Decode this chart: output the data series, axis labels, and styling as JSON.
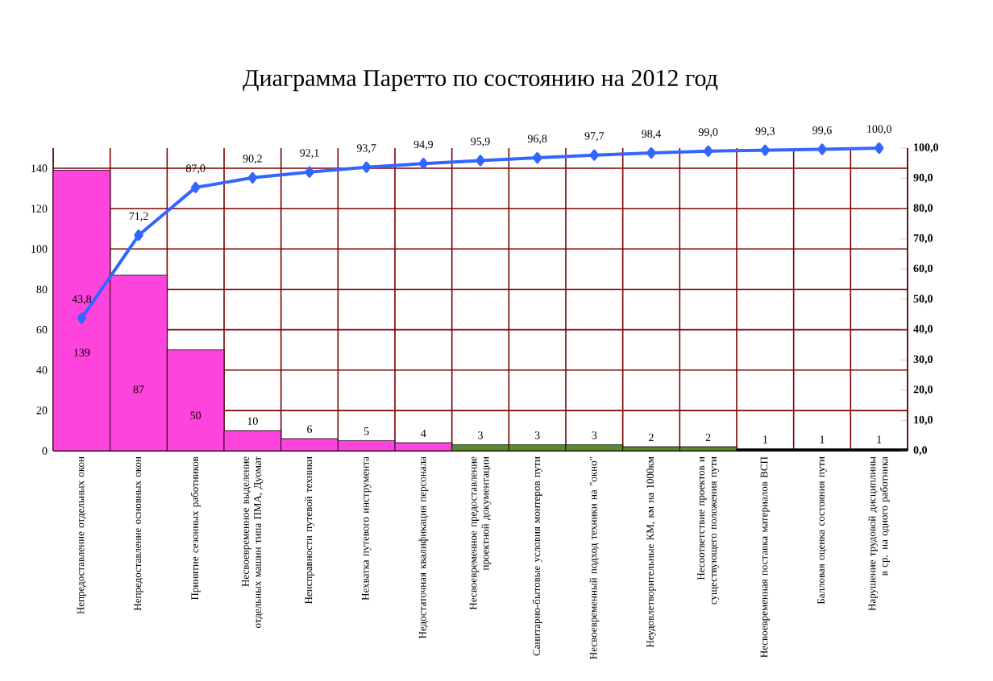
{
  "chart_data": {
    "type": "bar",
    "title": "Диаграмма Паретто по состоянию на 2012 год",
    "categories": [
      "Непредоставление отдельных окон",
      "Непредоставление основных окон",
      "Принятие сезонных работников",
      "Несвоевременное выделение отдельных машин типа ПМА, Дуомат",
      "Неисправности путевой техники",
      "Нехватка путевого инструмента",
      "Недостаточная квалификация персонала",
      "Несвоевременное предоставление проектной документации",
      "Санитарно-бытовые условия монтеров пути",
      "Несвоевременный подход техники на \"окно\"",
      "Неудовлетворительные КМ, км на 1000км",
      "Несоответствие проектов и существующего положения пути",
      "Несвоевременная поставка материалов ВСП",
      "Балловая оценка состояния пути",
      "Нарушение трудовой дисциплины в ср. на одного работника"
    ],
    "ylim": [
      0,
      150
    ],
    "yticks": [
      0,
      20,
      40,
      60,
      80,
      100,
      120,
      140
    ],
    "y2lim": [
      0,
      100
    ],
    "y2ticks": [
      {
        "value": 0,
        "label": "0,0"
      },
      {
        "value": 10,
        "label": "10,0"
      },
      {
        "value": 20,
        "label": "20,0"
      },
      {
        "value": 30,
        "label": "30,0"
      },
      {
        "value": 40,
        "label": "40,0"
      },
      {
        "value": 50,
        "label": "50,0"
      },
      {
        "value": 60,
        "label": "60,0"
      },
      {
        "value": 70,
        "label": "70,0"
      },
      {
        "value": 80,
        "label": "80,0"
      },
      {
        "value": 90,
        "label": "90,0"
      },
      {
        "value": 100,
        "label": "100,0"
      }
    ],
    "grid": true,
    "data_labels": true,
    "series": [
      {
        "colors": [
          "#ff44dd",
          "#ff44dd",
          "#ff44dd",
          "#ff44dd",
          "#ff44dd",
          "#ff44dd",
          "#ff44dd",
          "#5a8a30",
          "#5a8a30",
          "#5a8a30",
          "#5a8a30",
          "#5a8a30",
          "#000000",
          "#000000",
          "#000000"
        ],
        "values": [
          139,
          87,
          50,
          10,
          6,
          5,
          4,
          3,
          3,
          3,
          2,
          2,
          1,
          1,
          1
        ]
      },
      {
        "type": "line",
        "axis": "y2",
        "color": "#3366ff",
        "marker": "diamond",
        "values": [
          43.8,
          71.2,
          87.0,
          90.2,
          92.1,
          93.7,
          94.9,
          95.9,
          96.8,
          97.7,
          98.4,
          99.0,
          99.3,
          99.6,
          100.0
        ],
        "value_labels": [
          "43,8",
          "71,2",
          "87,0",
          "90,2",
          "92,1",
          "93,7",
          "94,9",
          "95,9",
          "96,8",
          "97,7",
          "98,4",
          "99,0",
          "99,3",
          "99,6",
          "100,0"
        ]
      }
    ]
  }
}
